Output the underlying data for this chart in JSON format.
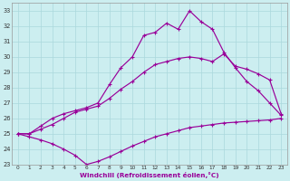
{
  "xlabel": "Windchill (Refroidissement éolien,°C)",
  "bg_color": "#cceef0",
  "grid_color": "#aad8dc",
  "line_color": "#990099",
  "xlim": [
    -0.5,
    23.5
  ],
  "ylim": [
    23,
    33.5
  ],
  "xticks": [
    0,
    1,
    2,
    3,
    4,
    5,
    6,
    7,
    8,
    9,
    10,
    11,
    12,
    13,
    14,
    15,
    16,
    17,
    18,
    19,
    20,
    21,
    22,
    23
  ],
  "yticks": [
    23,
    24,
    25,
    26,
    27,
    28,
    29,
    30,
    31,
    32,
    33
  ],
  "curve1_x": [
    0,
    1,
    2,
    3,
    4,
    5,
    6,
    7,
    8,
    9,
    10,
    11,
    12,
    13,
    14,
    15,
    16,
    17,
    18,
    19,
    20,
    21,
    22,
    23
  ],
  "curve1_y": [
    25.0,
    24.8,
    24.6,
    24.35,
    24.0,
    23.6,
    23.0,
    23.2,
    23.5,
    23.85,
    24.2,
    24.5,
    24.8,
    25.0,
    25.2,
    25.4,
    25.5,
    25.6,
    25.7,
    25.75,
    25.8,
    25.85,
    25.9,
    26.0
  ],
  "curve2_x": [
    0,
    1,
    2,
    3,
    4,
    5,
    6,
    7,
    8,
    9,
    10,
    11,
    12,
    13,
    14,
    15,
    16,
    17,
    18,
    19,
    20,
    21,
    22,
    23
  ],
  "curve2_y": [
    25.0,
    25.0,
    25.5,
    26.0,
    26.3,
    26.5,
    26.7,
    27.0,
    28.2,
    29.3,
    30.0,
    31.4,
    31.6,
    32.2,
    31.8,
    33.0,
    32.3,
    31.8,
    30.3,
    29.3,
    28.4,
    27.8,
    27.0,
    26.2
  ],
  "curve3_x": [
    0,
    1,
    2,
    3,
    4,
    5,
    6,
    7,
    8,
    9,
    10,
    11,
    12,
    13,
    14,
    15,
    16,
    17,
    18,
    19,
    20,
    21,
    22,
    23
  ],
  "curve3_y": [
    25.0,
    25.0,
    25.3,
    25.6,
    26.0,
    26.4,
    26.6,
    26.8,
    27.3,
    27.9,
    28.4,
    29.0,
    29.5,
    29.7,
    29.9,
    30.0,
    29.9,
    29.7,
    30.2,
    29.4,
    29.2,
    28.9,
    28.5,
    26.3
  ]
}
